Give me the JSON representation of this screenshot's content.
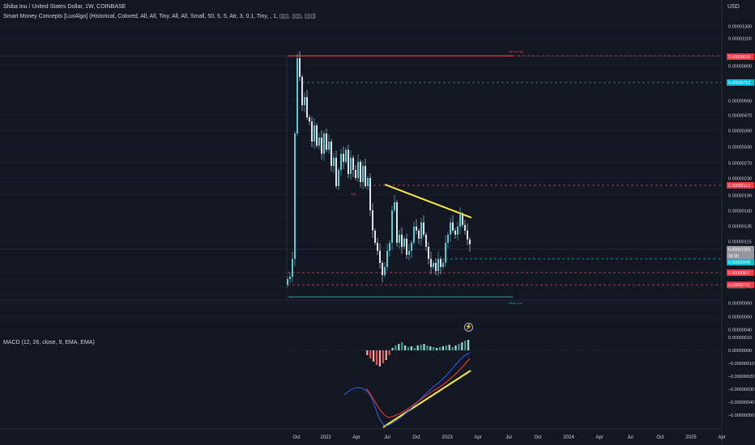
{
  "header": {
    "symbol_line": "Shiba Inu / United States Dollar, 1W, COINBASE",
    "indicator_line": "Smart Money Concepts [LuxAlgo] (Historical, Colored, All, All, Tiny, All, All, Small, 50, 5, 5, Atr, 3, 0.1, Tiny, , 1, ▯▯▯, ▯▯▯, ▯▯▯)",
    "currency": "USD"
  },
  "macd": {
    "label": "MACD (12, 26, close, 9, EMA, EMA)"
  },
  "colors": {
    "bg": "#131722",
    "up": "#26a69a",
    "down": "#ef5350",
    "bull_candle": "#5dc7d2",
    "bear_candle": "#e0e3eb",
    "macd_line": "#2962ff",
    "signal_line": "#ff3b30",
    "trend_line": "#ffeb3b",
    "grid": "#1f2430",
    "axis_text": "#d1d4dc"
  },
  "chart_data": [
    {
      "type": "candlestick",
      "scale": "log",
      "x_ticks": [
        "Oct",
        "2022",
        "Apr",
        "Jul",
        "Oct",
        "2023",
        "Apr",
        "Jul",
        "Oct",
        "2024",
        "Apr",
        "Jul",
        "Oct",
        "2025",
        "Apr"
      ],
      "y_ticks": [
        1.3e-05,
        1.1e-05,
        9.5e-06,
        8e-06,
        5.6e-06,
        4.7e-06,
        3.9e-06,
        3.3e-06,
        2.7e-06,
        2.3e-06,
        1.9e-06,
        1.6e-06,
        1.35e-06,
        1.15e-06,
        9.5e-07,
        8e-07,
        7e-07,
        6e-07,
        5e-07,
        4e-07
      ],
      "price_badges": [
        {
          "value": "0.00009010",
          "color": "#f23645"
        },
        {
          "value": "0.00006752",
          "color": "#00bcd4"
        },
        {
          "value": "0.00002113",
          "color": "#f23645"
        },
        {
          "value": "0.00001052",
          "color": "#9598a1"
        },
        {
          "value": "3d 5h",
          "color": "#9598a1"
        },
        {
          "value": "0.00000946",
          "color": "#00bcd4"
        },
        {
          "value": "0.00000817",
          "color": "#f23645"
        },
        {
          "value": "0.00000711",
          "color": "#f23645"
        }
      ],
      "annotations": [
        "Strong High",
        "EQL",
        "Weak Low"
      ]
    },
    {
      "type": "bar+line",
      "name": "MACD",
      "y_ticks": [
        1e-07,
        0.0,
        -1e-07,
        -2e-07,
        -3e-07,
        -4e-07,
        -5e-07
      ]
    }
  ]
}
